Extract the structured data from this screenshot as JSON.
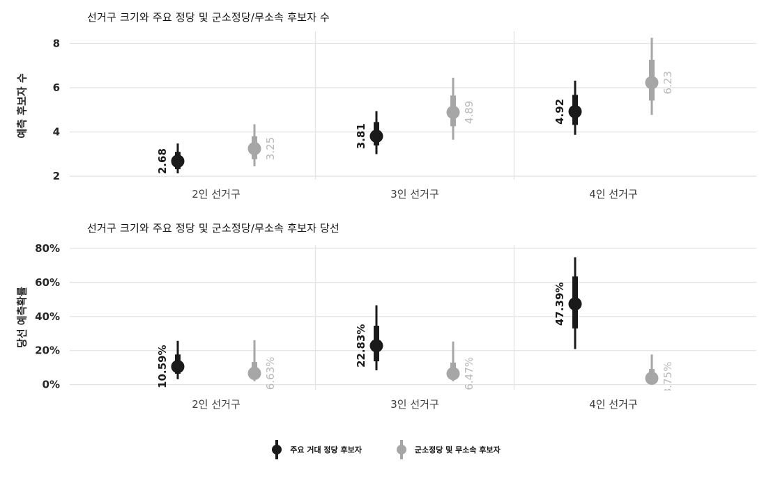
{
  "figure": {
    "background": "#ffffff"
  },
  "style": {
    "grid_color": "#e3e3e3",
    "tick_label_color": "#262626",
    "category_label_color": "#3d3d3d",
    "title_color": "#111111"
  },
  "legend": {
    "items": [
      {
        "label": "주요 거대 정당 후보자",
        "color": "#1a1a1a"
      },
      {
        "label": "군소정당 및 무소속 후보자",
        "color": "#a6a6a6"
      }
    ]
  },
  "chart_data": [
    {
      "type": "pointrange",
      "title": "선거구 크기와 주요 정당 및 군소정당/무소속 후보자 수",
      "ylabel": "예측 후보자 수",
      "xlabel": "",
      "categories": [
        "2인 선거구",
        "3인 선거구",
        "4인 선거구"
      ],
      "yticks": [
        2,
        4,
        6,
        8
      ],
      "ytick_labels": [
        "2",
        "4",
        "6",
        "8"
      ],
      "ylim": [
        1.85,
        8.55
      ],
      "grid": true,
      "legend_position": "bottom-shared",
      "series": [
        {
          "name": "주요 거대 정당 후보자",
          "color": "#1a1a1a",
          "label_color": "#1a1a1a",
          "points": [
            {
              "category": "2인 선거구",
              "value": 2.68,
              "label": "2.68",
              "inner_low": 2.32,
              "inner_high": 3.1,
              "outer_low": 2.13,
              "outer_high": 3.48
            },
            {
              "category": "3인 선거구",
              "value": 3.81,
              "label": "3.81",
              "inner_low": 3.39,
              "inner_high": 4.45,
              "outer_low": 3.0,
              "outer_high": 4.94
            },
            {
              "category": "4인 선거구",
              "value": 4.92,
              "label": "4.92",
              "inner_low": 4.32,
              "inner_high": 5.68,
              "outer_low": 3.87,
              "outer_high": 6.32
            }
          ]
        },
        {
          "name": "군소정당 및 무소속 후보자",
          "color": "#a6a6a6",
          "label_color": "#b8b8b8",
          "points": [
            {
              "category": "2인 선거구",
              "value": 3.25,
              "label": "3.25",
              "inner_low": 2.77,
              "inner_high": 3.81,
              "outer_low": 2.45,
              "outer_high": 4.35
            },
            {
              "category": "3인 선거구",
              "value": 4.89,
              "label": "4.89",
              "inner_low": 4.26,
              "inner_high": 5.65,
              "outer_low": 3.65,
              "outer_high": 6.45
            },
            {
              "category": "4인 선거구",
              "value": 6.23,
              "label": "6.23",
              "inner_low": 5.42,
              "inner_high": 7.26,
              "outer_low": 4.77,
              "outer_high": 8.26
            }
          ]
        }
      ]
    },
    {
      "type": "pointrange",
      "title": "선거구 크기와 주요 정당 및 군소정당/무소속 후보자 당선",
      "ylabel": "당선 예측확률",
      "xlabel": "",
      "categories": [
        "2인 선거구",
        "3인 선거구",
        "4인 선거구"
      ],
      "yticks": [
        0,
        20,
        40,
        60,
        80
      ],
      "ytick_labels": [
        "0%",
        "20%",
        "40%",
        "60%",
        "80%"
      ],
      "ylim": [
        -3,
        82
      ],
      "grid": true,
      "legend_position": "bottom-shared",
      "series": [
        {
          "name": "주요 거대 정당 후보자",
          "color": "#1a1a1a",
          "label_color": "#1a1a1a",
          "points": [
            {
              "category": "2인 선거구",
              "value": 10.59,
              "label": "10.59%",
              "inner_low": 6.4,
              "inner_high": 17.7,
              "outer_low": 3.2,
              "outer_high": 25.7
            },
            {
              "category": "3인 선거구",
              "value": 22.83,
              "label": "22.83%",
              "inner_low": 13.7,
              "inner_high": 34.6,
              "outer_low": 8.4,
              "outer_high": 46.6
            },
            {
              "category": "4인 선거구",
              "value": 47.39,
              "label": "47.39%",
              "inner_low": 33.0,
              "inner_high": 63.5,
              "outer_low": 20.9,
              "outer_high": 74.8
            }
          ]
        },
        {
          "name": "군소정당 및 무소속 후보자",
          "color": "#a6a6a6",
          "label_color": "#b8b8b8",
          "points": [
            {
              "category": "2인 선거구",
              "value": 6.63,
              "label": "6.63%",
              "inner_low": 4.4,
              "inner_high": 13.3,
              "outer_low": 2.0,
              "outer_high": 26.1
            },
            {
              "category": "3인 선거구",
              "value": 6.47,
              "label": "6.47%",
              "inner_low": 4.0,
              "inner_high": 12.9,
              "outer_low": 2.0,
              "outer_high": 25.3
            },
            {
              "category": "4인 선거구",
              "value": 3.75,
              "label": "3.75%",
              "inner_low": 2.0,
              "inner_high": 9.2,
              "outer_low": 0.8,
              "outer_high": 17.7
            }
          ]
        }
      ]
    }
  ]
}
